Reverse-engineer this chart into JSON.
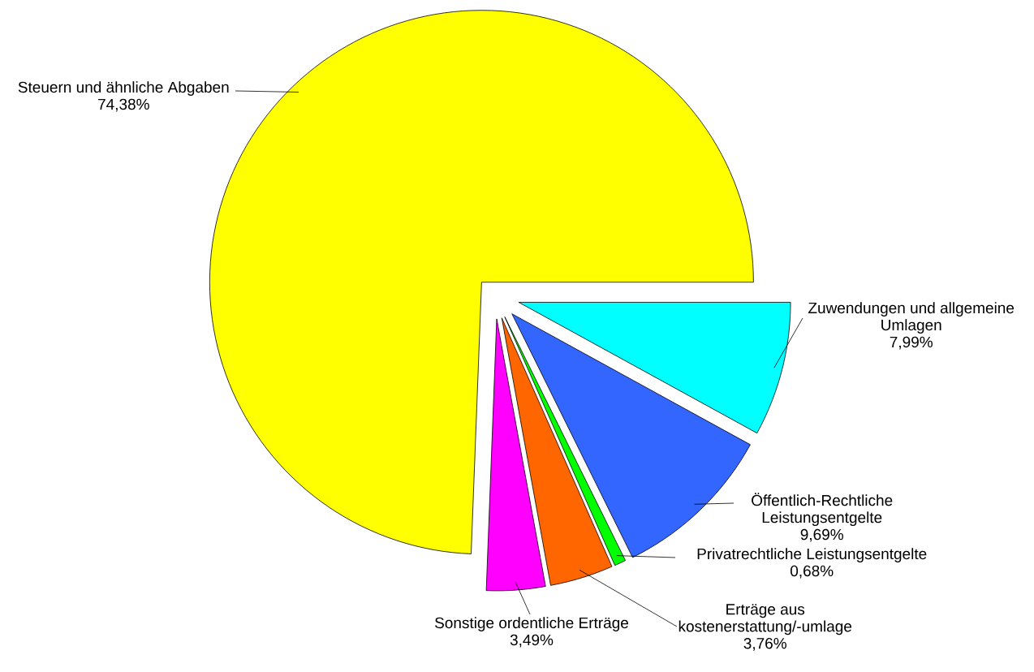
{
  "chart_data": {
    "type": "pie",
    "categories": [
      "Steuern und ähnliche Abgaben",
      "Zuwendungen und allgemeine Umlagen",
      "Öffentlich-Rechtliche Leistungsentgelte",
      "Privatrechtliche Leistungsentgelte",
      "Erträge aus kostenerstattung/-umlage",
      "Sonstige ordentliche Erträge"
    ],
    "values": [
      74.38,
      7.99,
      9.69,
      0.68,
      3.76,
      3.49
    ],
    "colors": [
      "#ffff00",
      "#00ffff",
      "#3366ff",
      "#00ff00",
      "#ff6600",
      "#ff00ff"
    ],
    "value_labels": [
      "74,38%",
      "7,99%",
      "9,69%",
      "0,68%",
      "3,76%",
      "3,49%"
    ]
  }
}
